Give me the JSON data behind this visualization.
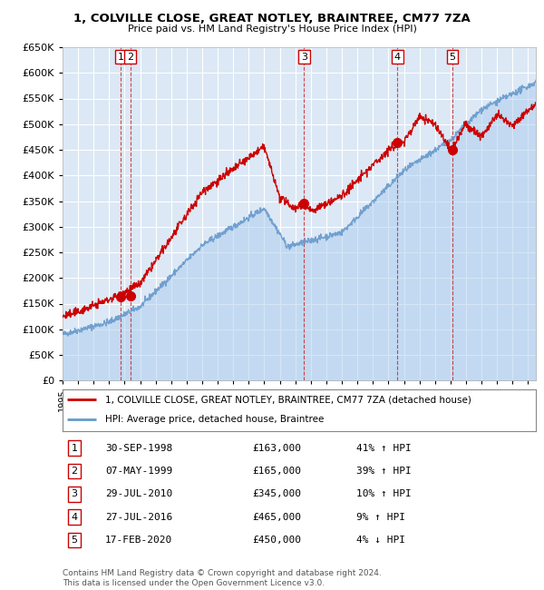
{
  "title1": "1, COLVILLE CLOSE, GREAT NOTLEY, BRAINTREE, CM77 7ZA",
  "title2": "Price paid vs. HM Land Registry's House Price Index (HPI)",
  "ylim": [
    0,
    650000
  ],
  "yticks": [
    0,
    50000,
    100000,
    150000,
    200000,
    250000,
    300000,
    350000,
    400000,
    450000,
    500000,
    550000,
    600000,
    650000
  ],
  "xlim_start": 1995.0,
  "xlim_end": 2025.5,
  "bg_color": "#dce8f5",
  "grid_color": "#ffffff",
  "red_line_color": "#cc0000",
  "blue_line_color": "#6699cc",
  "sale_dates_year": [
    1998.75,
    1999.37,
    2010.57,
    2016.57,
    2020.12
  ],
  "sale_prices": [
    163000,
    165000,
    345000,
    465000,
    450000
  ],
  "sale_labels": [
    "1",
    "2",
    "3",
    "4",
    "5"
  ],
  "vline_color": "#cc0000",
  "footer_text": "Contains HM Land Registry data © Crown copyright and database right 2024.\nThis data is licensed under the Open Government Licence v3.0.",
  "legend_line1": "1, COLVILLE CLOSE, GREAT NOTLEY, BRAINTREE, CM77 7ZA (detached house)",
  "legend_line2": "HPI: Average price, detached house, Braintree",
  "table_rows": [
    [
      "1",
      "30-SEP-1998",
      "£163,000",
      "41% ↑ HPI"
    ],
    [
      "2",
      "07-MAY-1999",
      "£165,000",
      "39% ↑ HPI"
    ],
    [
      "3",
      "29-JUL-2010",
      "£345,000",
      "10% ↑ HPI"
    ],
    [
      "4",
      "27-JUL-2016",
      "£465,000",
      "9% ↑ HPI"
    ],
    [
      "5",
      "17-FEB-2020",
      "£450,000",
      "4% ↓ HPI"
    ]
  ]
}
